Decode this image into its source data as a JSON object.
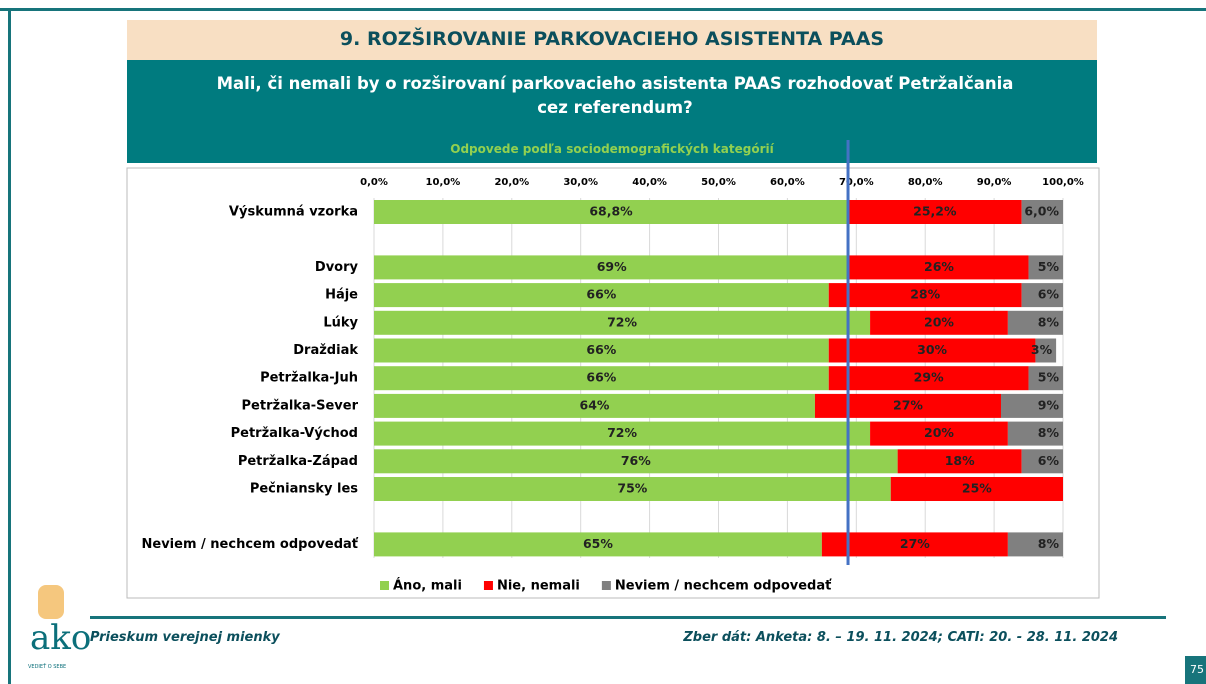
{
  "header": {
    "title": "9. ROZŠIROVANIE PARKOVACIEHO ASISTENTA PAAS",
    "question": "Mali, či nemali by o rozširovaní parkovacieho asistenta PAAS rozhodovať Petržalčania cez referendum?",
    "subtitle": "Odpovede podľa sociodemografických kategórií"
  },
  "chart_data": {
    "type": "bar",
    "orientation": "horizontal",
    "stacked": true,
    "categories": [
      "Výskumná vzorka",
      null,
      "Dvory",
      "Háje",
      "Lúky",
      "Draždiak",
      "Petržalka-Juh",
      "Petržalka-Sever",
      "Petržalka-Východ",
      "Petržalka-Západ",
      "Pečniansky les",
      null,
      "Neviem / nechcem odpovedať"
    ],
    "series": [
      {
        "name": "Áno, mali",
        "color": "#92d050",
        "values": [
          68.8,
          null,
          69,
          66,
          72,
          66,
          66,
          64,
          72,
          76,
          75,
          null,
          65
        ],
        "value_labels": [
          "68,8%",
          null,
          "69%",
          "66%",
          "72%",
          "66%",
          "66%",
          "64%",
          "72%",
          "76%",
          "75%",
          null,
          "65%"
        ]
      },
      {
        "name": "Nie, nemali",
        "color": "#ff0000",
        "values": [
          25.2,
          null,
          26,
          28,
          20,
          30,
          29,
          27,
          20,
          18,
          25,
          null,
          27
        ],
        "value_labels": [
          "25,2%",
          null,
          "26%",
          "28%",
          "20%",
          "30%",
          "29%",
          "27%",
          "20%",
          "18%",
          "25%",
          null,
          "27%"
        ]
      },
      {
        "name": "Neviem / nechcem odpovedať",
        "color": "#808080",
        "values": [
          6.0,
          null,
          5,
          6,
          8,
          3,
          5,
          9,
          8,
          6,
          null,
          null,
          8
        ],
        "value_labels": [
          "6,0%",
          null,
          "5%",
          "6%",
          "8%",
          "3%",
          "5%",
          "9%",
          "8%",
          "6%",
          null,
          null,
          "8%"
        ]
      }
    ],
    "xlim": [
      0,
      100
    ],
    "xticks": [
      {
        "value": 0,
        "label": "0,0%"
      },
      {
        "value": 10,
        "label": "10,0%"
      },
      {
        "value": 20,
        "label": "20,0%"
      },
      {
        "value": 30,
        "label": "30,0%"
      },
      {
        "value": 40,
        "label": "40,0%"
      },
      {
        "value": 50,
        "label": "50,0%"
      },
      {
        "value": 60,
        "label": "60,0%"
      },
      {
        "value": 70,
        "label": "70,0%"
      },
      {
        "value": 80,
        "label": "80,0%"
      },
      {
        "value": 90,
        "label": "90,0%"
      },
      {
        "value": 100,
        "label": "100,0%"
      }
    ],
    "grid": true,
    "legend": "bottom"
  },
  "footer": {
    "left": "Prieskum verejnej mienky",
    "right": "Zber dát: Anketa: 8. – 19. 11. 2024; CATI: 20. - 28. 11. 2024",
    "page": "75",
    "logo": "ako",
    "logo_tagline": "VEDIEŤ O SEBE"
  }
}
